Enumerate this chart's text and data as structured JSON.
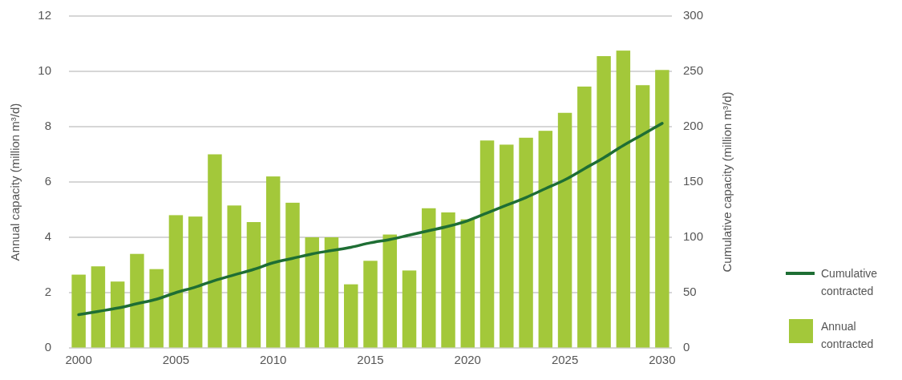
{
  "chart_data": {
    "type": "bar",
    "ylabel": "Annual capacity (million m³/d)",
    "y2label": "Cumulative capacity (million m³/d)",
    "x": [
      2000,
      2001,
      2002,
      2003,
      2004,
      2005,
      2006,
      2007,
      2008,
      2009,
      2010,
      2011,
      2012,
      2013,
      2014,
      2015,
      2016,
      2017,
      2018,
      2019,
      2020,
      2021,
      2022,
      2023,
      2024,
      2025,
      2026,
      2027,
      2028,
      2029,
      2030
    ],
    "xlim": [
      1999.5,
      2030.5
    ],
    "xticks": [
      2000,
      2005,
      2010,
      2015,
      2020,
      2025,
      2030
    ],
    "ylim": [
      0,
      12
    ],
    "yticks": [
      0,
      2,
      4,
      6,
      8,
      10,
      12
    ],
    "y2lim": [
      0,
      300
    ],
    "y2ticks": [
      0,
      50,
      100,
      150,
      200,
      250,
      300
    ],
    "series": [
      {
        "name": "Annual contracted",
        "color": "#a3c83a",
        "values": [
          2.65,
          2.95,
          2.4,
          3.4,
          2.85,
          4.8,
          4.75,
          7.0,
          5.15,
          4.55,
          6.2,
          5.25,
          4.0,
          4.0,
          2.3,
          3.15,
          4.1,
          2.8,
          5.05,
          4.9,
          4.65,
          7.5,
          7.35,
          7.6,
          7.85,
          8.5,
          9.45,
          10.55,
          10.75,
          9.5,
          10.05
        ]
      },
      {
        "name": "Cumulative contracted",
        "type": "line",
        "axis": "y2",
        "color": "#1e6e34",
        "values": [
          30,
          33,
          36,
          40,
          44,
          50,
          55,
          61,
          66,
          71,
          77,
          81,
          85,
          88,
          91,
          95,
          98,
          102,
          106,
          110,
          115,
          122,
          129,
          136,
          144,
          152,
          162,
          172,
          183,
          193,
          203
        ]
      }
    ],
    "grid": "y",
    "legend": "right"
  }
}
